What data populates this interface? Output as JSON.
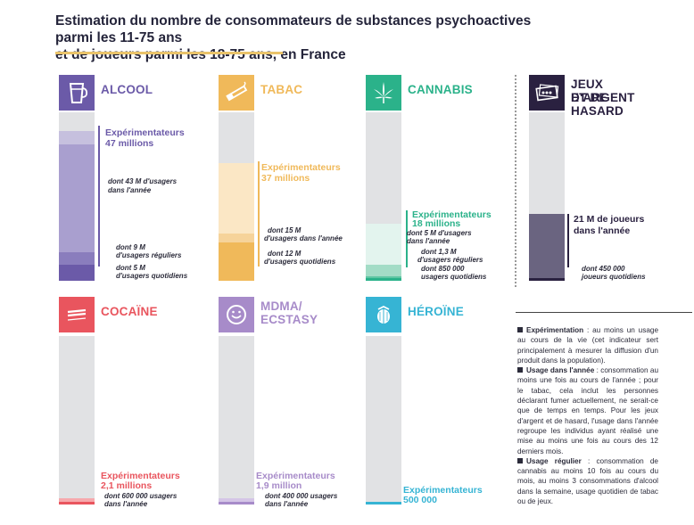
{
  "title": {
    "line1": "Estimation du nombre de consommateurs de substances psychoactives parmi les 11-75 ans",
    "line2": "et de joueurs parmi les 18-75 ans, en France"
  },
  "colors": {
    "title_rule": "#e9c36a",
    "bar_bg": "#e1e2e4",
    "alcool": "#6b5aa8",
    "tabac": "#f0b95a",
    "cannabis": "#2bb28a",
    "jeux": "#2a2140",
    "cocaine": "#e9555e",
    "mdma": "#a78bc9",
    "heroine": "#36b4d4"
  },
  "panels": {
    "alcool": {
      "label": "ALCOOL",
      "icon": "beer-glass-icon",
      "exp_title": "Expérimentateurs",
      "exp_value": "47 millions",
      "annee_text1": "dont 43 M d'usagers",
      "annee_text2": "dans l'année",
      "reg_text1": "dont 9 M",
      "reg_text2": "d'usagers réguliers",
      "quot_text1": "dont 5 M",
      "quot_text2": "d'usagers quotidiens"
    },
    "tabac": {
      "label": "TABAC",
      "icon": "cigarette-icon",
      "exp_title": "Expérimentateurs",
      "exp_value": "37 millions",
      "annee_text1": "dont 15 M",
      "annee_text2": "d'usagers dans l'année",
      "quot_text1": "dont 12 M",
      "quot_text2": "d'usagers quotidiens"
    },
    "cannabis": {
      "label": "CANNABIS",
      "icon": "cannabis-leaf-icon",
      "exp_title": "Expérimentateurs",
      "exp_value": "18 millions",
      "annee_text1": "dont 5 M d'usagers",
      "annee_text2": "dans l'année",
      "reg_text1": "dont 1,3 M",
      "reg_text2": "d'usagers réguliers",
      "quot_text1": "dont 850 000",
      "quot_text2": "usagers quotidiens"
    },
    "jeux": {
      "label1": "JEUX D'ARGENT",
      "label2": "ET DE HASARD",
      "icon": "lottery-ticket-icon",
      "main_text1": "21 M de joueurs",
      "main_text2": "dans l'année",
      "quot_text1": "dont 450 000",
      "quot_text2": "joueurs quotidiens"
    },
    "cocaine": {
      "label": "COCAÏNE",
      "icon": "cocaine-lines-icon",
      "exp_title": "Expérimentateurs",
      "exp_value": "2,1 millions",
      "annee_text1": "dont 600 000 usagers",
      "annee_text2": "dans l'année"
    },
    "mdma": {
      "label1": "MDMA/",
      "label2": "ECSTASY",
      "icon": "ecstasy-pill-icon",
      "exp_title": "Expérimentateurs",
      "exp_value": "1,9 million",
      "annee_text1": "dont 400 000 usagers",
      "annee_text2": "dans l'année"
    },
    "heroine": {
      "label": "HÉROÏNE",
      "icon": "poppy-capsule-icon",
      "exp_title": "Expérimentateurs",
      "exp_value": "500 000"
    }
  },
  "definitions": {
    "exp_term": "Expérimentation",
    "exp_text": " : au moins un usage au cours de la vie (cet indicateur sert principalement à mesurer la diffusion d'un produit dans la population).",
    "annee_term": "Usage dans l'année",
    "annee_text": " : consommation au moins une fois au cours de l'année ; pour le tabac, cela inclut les personnes déclarant fumer actuellement, ne serait-ce que de temps en temps. Pour les jeux d'argent et de hasard, l'usage dans l'année regroupe les individus ayant réalisé une mise au moins une fois au cours des 12 derniers mois.",
    "reg_term": "Usage régulier",
    "reg_text": " : consommation de cannabis au moins 10 fois au cours du mois, au moins 3 consommations d'alcool dans la semaine, usage quotidien de tabac ou de jeux."
  },
  "chart_data": {
    "type": "bar",
    "title": "Estimation du nombre de consommateurs de substances psychoactives parmi les 11-75 ans et de joueurs parmi les 18-75 ans, en France",
    "categories": [
      "Alcool",
      "Tabac",
      "Cannabis",
      "Jeux d'argent et de hasard",
      "Cocaïne",
      "MDMA/Ecstasy",
      "Héroïne"
    ],
    "unit": "millions",
    "series": [
      {
        "name": "Expérimentateurs",
        "values": [
          47,
          37,
          18,
          null,
          2.1,
          1.9,
          0.5
        ]
      },
      {
        "name": "Usagers dans l'année",
        "values": [
          43,
          15,
          5,
          21,
          0.6,
          0.4,
          null
        ]
      },
      {
        "name": "Usagers réguliers",
        "values": [
          9,
          null,
          1.3,
          null,
          null,
          null,
          null
        ]
      },
      {
        "name": "Usagers quotidiens",
        "values": [
          5,
          12,
          0.85,
          0.45,
          null,
          null,
          null
        ]
      }
    ],
    "bar_max": 53
  }
}
